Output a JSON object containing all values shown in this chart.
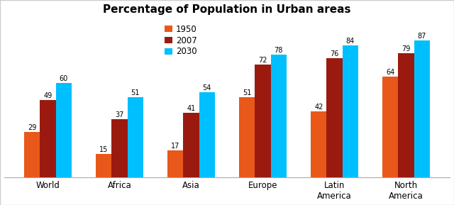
{
  "title": "Percentage of Population in Urban areas",
  "categories": [
    "World",
    "Africa",
    "Asia",
    "Europe",
    "Latin\nAmerica",
    "North\nAmerica"
  ],
  "series": {
    "1950": [
      29,
      15,
      17,
      51,
      42,
      64
    ],
    "2007": [
      49,
      37,
      41,
      72,
      76,
      79
    ],
    "2030": [
      60,
      51,
      54,
      78,
      84,
      87
    ]
  },
  "colors": {
    "1950": "#E8581A",
    "2007": "#9B1A10",
    "2030": "#00BFFF"
  },
  "legend_labels": [
    "1950",
    "2007",
    "2030"
  ],
  "bar_width": 0.22,
  "ylim": [
    0,
    100
  ],
  "title_fontsize": 11,
  "tick_fontsize": 8.5,
  "legend_fontsize": 8.5,
  "background_color": "#ffffff",
  "value_fontsize": 7.0,
  "border_color": "#cccccc"
}
